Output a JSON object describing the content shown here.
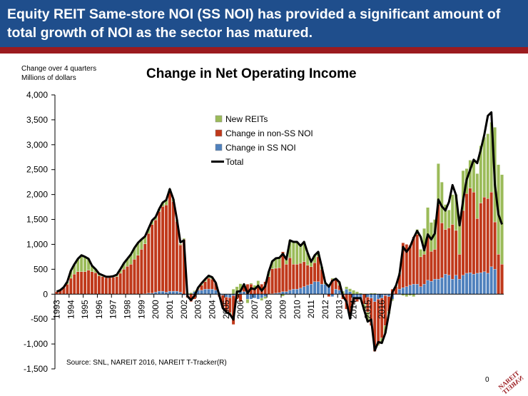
{
  "header": {
    "title": "Equity REIT Same-store NOI (SS NOI) has provided a significant amount of total growth of NOI as the sector has matured."
  },
  "chart_data": {
    "type": "bar",
    "subtype": "stacked bar with total line",
    "title": "Change in Net Operating Income",
    "unit_line1": "Change over 4 quarters",
    "unit_line2": "Millions of dollars",
    "ylim": [
      -1500,
      4000
    ],
    "yticks": [
      -1500,
      -1000,
      -500,
      0,
      500,
      1000,
      1500,
      2000,
      2500,
      3000,
      3500,
      4000
    ],
    "ytick_labels": [
      "-1,500",
      "-1,000",
      "-500",
      "0",
      "500",
      "1,000",
      "1,500",
      "2,000",
      "2,500",
      "3,000",
      "3,500",
      "4,000"
    ],
    "xtick_labels": [
      "1993",
      "1994",
      "1995",
      "1996",
      "1997",
      "1998",
      "1999",
      "2000",
      "2001",
      "2002",
      "2003",
      "2004",
      "2005",
      "2006",
      "2007",
      "2008",
      "2009",
      "2010",
      "2011",
      "2012",
      "2013",
      "2014",
      "2015",
      "2016"
    ],
    "x_start_year": 1993,
    "periods_per_year": 4,
    "grid": false,
    "legend_position": "top-center",
    "colors": {
      "ss": "#4f81bd",
      "non_ss": "#c0391b",
      "new": "#9bbb59",
      "total": "#000000",
      "bar_outline": "#ffffff"
    },
    "series": [
      {
        "name": "New REITs",
        "key": "new",
        "values": [
          0,
          0,
          10,
          50,
          150,
          200,
          260,
          330,
          300,
          230,
          120,
          70,
          40,
          30,
          20,
          20,
          20,
          40,
          80,
          120,
          150,
          200,
          230,
          250,
          200,
          150,
          100,
          80,
          60,
          50,
          80,
          100,
          50,
          50,
          30,
          20,
          20,
          30,
          30,
          20,
          30,
          40,
          50,
          50,
          40,
          0,
          0,
          0,
          0,
          -30,
          100,
          150,
          160,
          50,
          -80,
          20,
          80,
          120,
          -50,
          -40,
          100,
          150,
          200,
          200,
          -40,
          100,
          350,
          450,
          450,
          350,
          400,
          250,
          100,
          150,
          100,
          50,
          30,
          50,
          20,
          10,
          60,
          60,
          50,
          60,
          80,
          50,
          20,
          -120,
          -190,
          20,
          20,
          -30,
          -100,
          -150,
          -40,
          -30,
          20,
          20,
          -30,
          -50,
          -30,
          -50,
          100,
          150,
          520,
          560,
          580,
          600,
          820,
          820,
          500,
          360,
          600,
          720,
          700,
          800,
          500,
          560,
          650,
          900,
          1150,
          1200,
          1300,
          1400,
          1900,
          1800,
          1800,
          1200,
          650,
          400,
          300
        ]
      },
      {
        "name": "Change in non-SS NOI",
        "key": "non_ss",
        "values": [
          50,
          80,
          130,
          200,
          320,
          400,
          450,
          450,
          450,
          480,
          450,
          430,
          370,
          350,
          330,
          330,
          340,
          350,
          420,
          500,
          560,
          600,
          700,
          780,
          900,
          1000,
          1200,
          1380,
          1450,
          1600,
          1700,
          1750,
          2000,
          1800,
          1400,
          950,
          1100,
          -50,
          -150,
          -100,
          20,
          100,
          150,
          220,
          200,
          150,
          -50,
          -260,
          -300,
          -300,
          -580,
          -100,
          -150,
          100,
          200,
          200,
          100,
          150,
          200,
          250,
          350,
          500,
          500,
          500,
          800,
          550,
          650,
          500,
          500,
          500,
          500,
          400,
          350,
          380,
          500,
          300,
          0,
          -50,
          300,
          200,
          100,
          -100,
          -300,
          -400,
          -100,
          -50,
          0,
          -200,
          -300,
          -550,
          -1000,
          -900,
          -800,
          -600,
          -300,
          100,
          150,
          300,
          900,
          850,
          800,
          950,
          1000,
          600,
          600,
          900,
          600,
          600,
          1500,
          1100,
          900,
          950,
          1100,
          900,
          500,
          1300,
          1600,
          1700,
          1650,
          1100,
          1400,
          1500,
          1500,
          1500,
          950,
          800,
          600
        ]
      },
      {
        "name": "Change in SS NOI",
        "key": "ss",
        "values": [
          0,
          0,
          0,
          0,
          0,
          0,
          0,
          0,
          0,
          0,
          0,
          0,
          0,
          0,
          0,
          0,
          0,
          0,
          0,
          0,
          0,
          0,
          0,
          0,
          0,
          10,
          20,
          20,
          40,
          60,
          60,
          40,
          60,
          60,
          60,
          40,
          -20,
          -20,
          0,
          50,
          80,
          80,
          100,
          100,
          100,
          80,
          30,
          -20,
          -60,
          -70,
          -30,
          0,
          50,
          50,
          -100,
          -100,
          -80,
          -100,
          -80,
          -50,
          0,
          10,
          20,
          30,
          50,
          50,
          80,
          100,
          100,
          120,
          150,
          180,
          200,
          250,
          250,
          200,
          200,
          150,
          -50,
          100,
          80,
          0,
          100,
          50,
          -80,
          -100,
          -100,
          0,
          -60,
          -80,
          -150,
          -100,
          -80,
          -30,
          -50,
          -100,
          0,
          100,
          130,
          150,
          180,
          200,
          200,
          150,
          200,
          280,
          260,
          300,
          300,
          330,
          400,
          380,
          300,
          380,
          300,
          380,
          420,
          430,
          400,
          420,
          430,
          450,
          420,
          550,
          500
        ]
      }
    ],
    "total": {
      "name": "Total",
      "values": [
        50,
        80,
        140,
        250,
        470,
        600,
        710,
        780,
        750,
        710,
        570,
        500,
        410,
        380,
        350,
        350,
        360,
        390,
        500,
        620,
        710,
        800,
        930,
        1030,
        1100,
        1160,
        1320,
        1480,
        1550,
        1710,
        1840,
        1890,
        2110,
        1910,
        1510,
        1040,
        1080,
        -40,
        -120,
        -30,
        130,
        220,
        300,
        370,
        340,
        230,
        -20,
        -280,
        -360,
        -400,
        -510,
        50,
        60,
        200,
        20,
        120,
        100,
        170,
        70,
        160,
        450,
        660,
        720,
        730,
        810,
        700,
        1080,
        1050,
        1050,
        970,
        1050,
        830,
        650,
        780,
        850,
        550,
        230,
        150,
        270,
        310,
        240,
        -40,
        -150,
        -490,
        -80,
        -80,
        -80,
        -320,
        -550,
        -510,
        -1130,
        -960,
        -980,
        -780,
        -390,
        40,
        170,
        400,
        950,
        850,
        950,
        1130,
        1270,
        1150,
        880,
        1200,
        1100,
        1220,
        1900,
        1760,
        1680,
        1850,
        2190,
        1990,
        1380,
        1880,
        2300,
        2500,
        2700,
        2630,
        2900,
        3200,
        3580,
        3650,
        2200,
        1600,
        1400
      ]
    }
  },
  "source": "Source: SNL, NAREIT 2016, NAREIT T-Tracker(R)",
  "page_number": "0",
  "logo": {
    "text": "NAREIT",
    "color": "#9b1b1f"
  }
}
